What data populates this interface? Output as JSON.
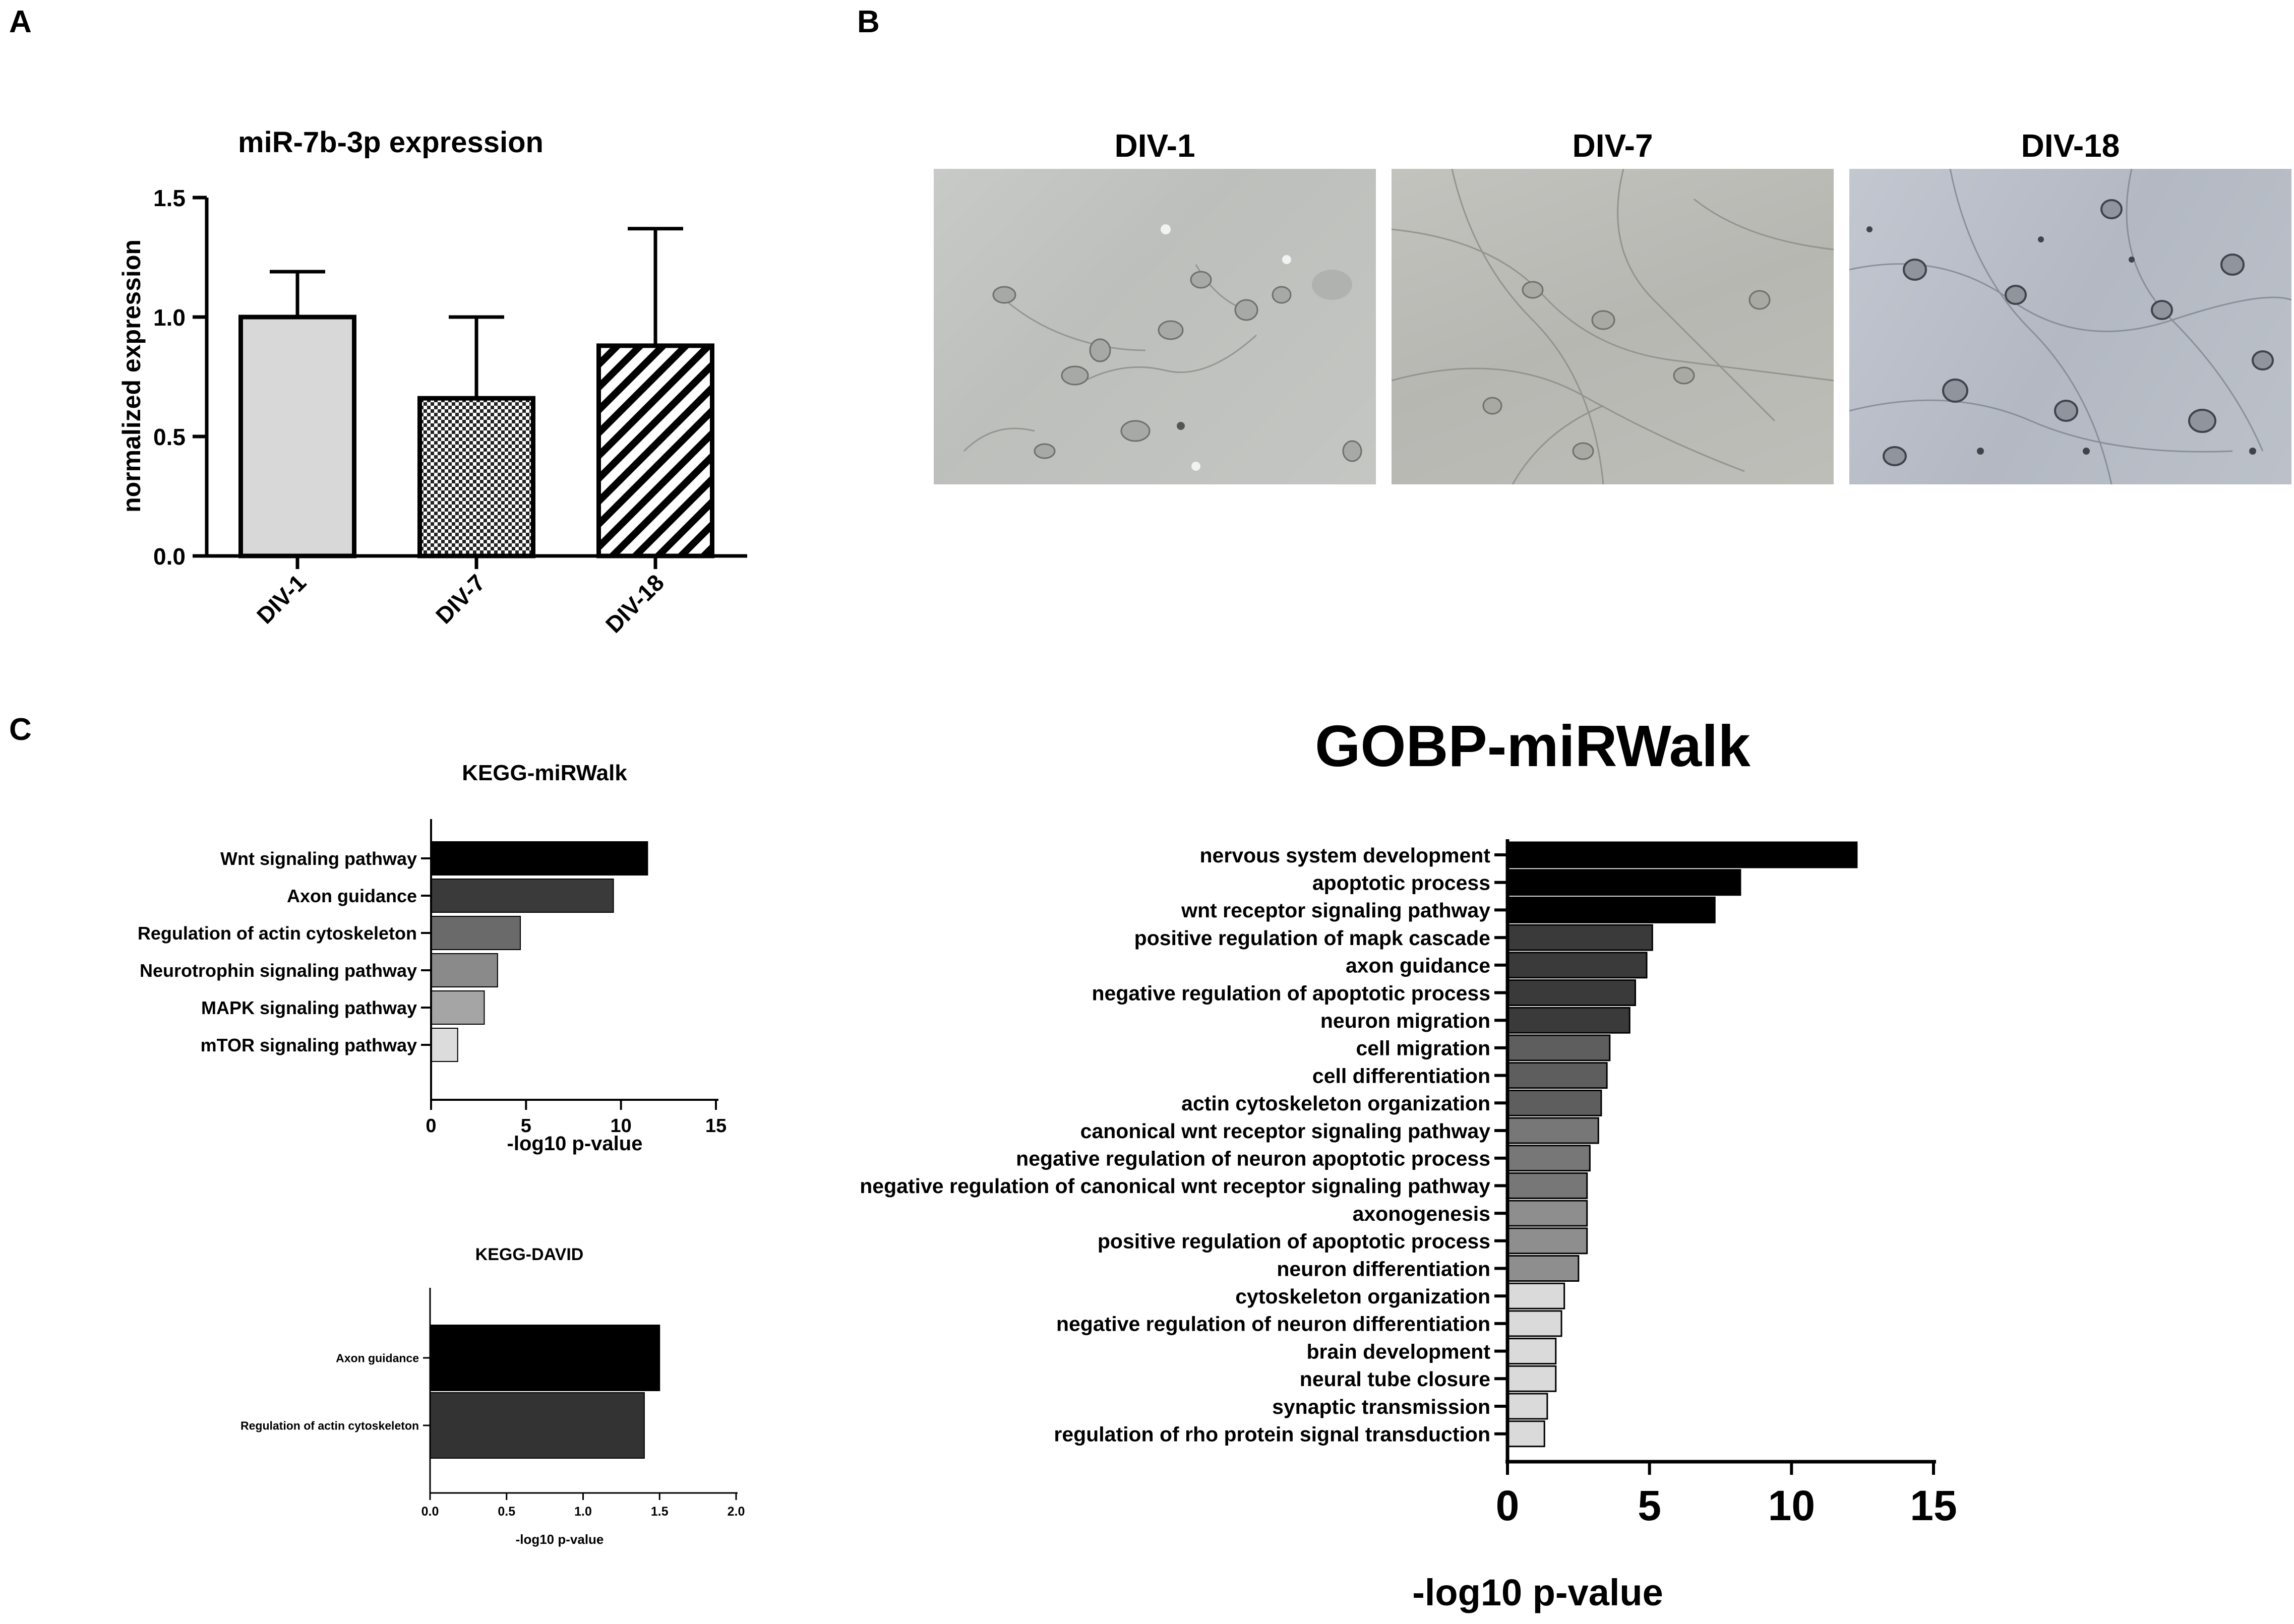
{
  "panels": {
    "a": "A",
    "b": "B",
    "c": "C"
  },
  "colors": {
    "A": [
      "#d8d8d8",
      "#ffffff",
      "#ffffff"
    ],
    "GOBP": [
      "#000000",
      "#000000",
      "#000000",
      "#3a3a3a",
      "#3a3a3a",
      "#3a3a3a",
      "#3a3a3a",
      "#5e5e5e",
      "#5e5e5e",
      "#5e5e5e",
      "#777777",
      "#777777",
      "#777777",
      "#8e8e8e",
      "#8e8e8e",
      "#8e8e8e",
      "#dadada",
      "#dadada",
      "#dadada",
      "#dadada",
      "#dadada",
      "#dadada"
    ],
    "KEGG": [
      "#000000",
      "#3a3a3a",
      "#6a6a6a",
      "#8a8a8a",
      "#a5a5a5",
      "#dcdcdc"
    ],
    "DAVID": [
      "#000000",
      "#333333"
    ]
  },
  "micrographs": [
    {
      "title": "DIV-1"
    },
    {
      "title": "DIV-7"
    },
    {
      "title": "DIV-18"
    }
  ],
  "chart_data": [
    {
      "id": "A",
      "type": "bar",
      "title": "miR-7b-3p expression",
      "xlabel": "",
      "ylabel": "normalized expression",
      "categories": [
        "DIV-1",
        "DIV-7",
        "DIV-18"
      ],
      "values": [
        1.0,
        0.66,
        0.88
      ],
      "errors": [
        0.19,
        0.34,
        0.49
      ],
      "patterns": [
        "solid-light-gray",
        "checker",
        "diagonal-stripes"
      ],
      "ylim": [
        0,
        1.5
      ],
      "yticks": [
        "0.0",
        "0.5",
        "1.0",
        "1.5"
      ]
    },
    {
      "id": "KEGG-miRWalk",
      "type": "bar",
      "orientation": "horizontal",
      "title": "KEGG-miRWalk",
      "xlabel": "-log10 p-value",
      "categories": [
        "Wnt signaling pathway",
        "Axon guidance",
        "Regulation of actin cytoskeleton",
        "Neurotrophin signaling pathway",
        "MAPK signaling pathway",
        "mTOR signaling pathway"
      ],
      "values": [
        11.4,
        9.6,
        4.7,
        3.5,
        2.8,
        1.4
      ],
      "xlim": [
        0,
        15
      ],
      "xticks": [
        "0",
        "5",
        "10",
        "15"
      ]
    },
    {
      "id": "KEGG-DAVID",
      "type": "bar",
      "orientation": "horizontal",
      "title": "KEGG-DAVID",
      "xlabel": "-log10 p-value",
      "categories": [
        "Axon guidance",
        "Regulation of actin cytoskeleton"
      ],
      "values": [
        1.5,
        1.4
      ],
      "xlim": [
        0,
        2.0
      ],
      "xticks": [
        "0.0",
        "0.5",
        "1.0",
        "1.5",
        "2.0"
      ]
    },
    {
      "id": "GOBP-miRWalk",
      "type": "bar",
      "orientation": "horizontal",
      "title": "GOBP-miRWalk",
      "xlabel": "-log10 p-value",
      "categories": [
        "nervous system development",
        "apoptotic process",
        "wnt receptor signaling pathway",
        "positive regulation of mapk cascade",
        "axon guidance",
        "negative regulation of apoptotic process",
        "neuron migration",
        "cell migration",
        "cell differentiation",
        "actin cytoskeleton organization",
        "canonical wnt receptor signaling pathway",
        "negative regulation of neuron apoptotic process",
        "negative regulation of canonical wnt receptor signaling pathway",
        "axonogenesis",
        "positive regulation of apoptotic process",
        "neuron differentiation",
        "cytoskeleton organization",
        "negative regulation of neuron differentiation",
        "brain development",
        "neural tube closure",
        "synaptic transmission",
        "regulation of rho protein signal transduction"
      ],
      "values": [
        12.3,
        8.2,
        7.3,
        5.1,
        4.9,
        4.5,
        4.3,
        3.6,
        3.5,
        3.3,
        3.2,
        2.9,
        2.8,
        2.8,
        2.8,
        2.5,
        2.0,
        1.9,
        1.7,
        1.7,
        1.4,
        1.3
      ],
      "xlim": [
        0,
        15
      ],
      "xticks": [
        "0",
        "5",
        "10",
        "15"
      ]
    }
  ]
}
